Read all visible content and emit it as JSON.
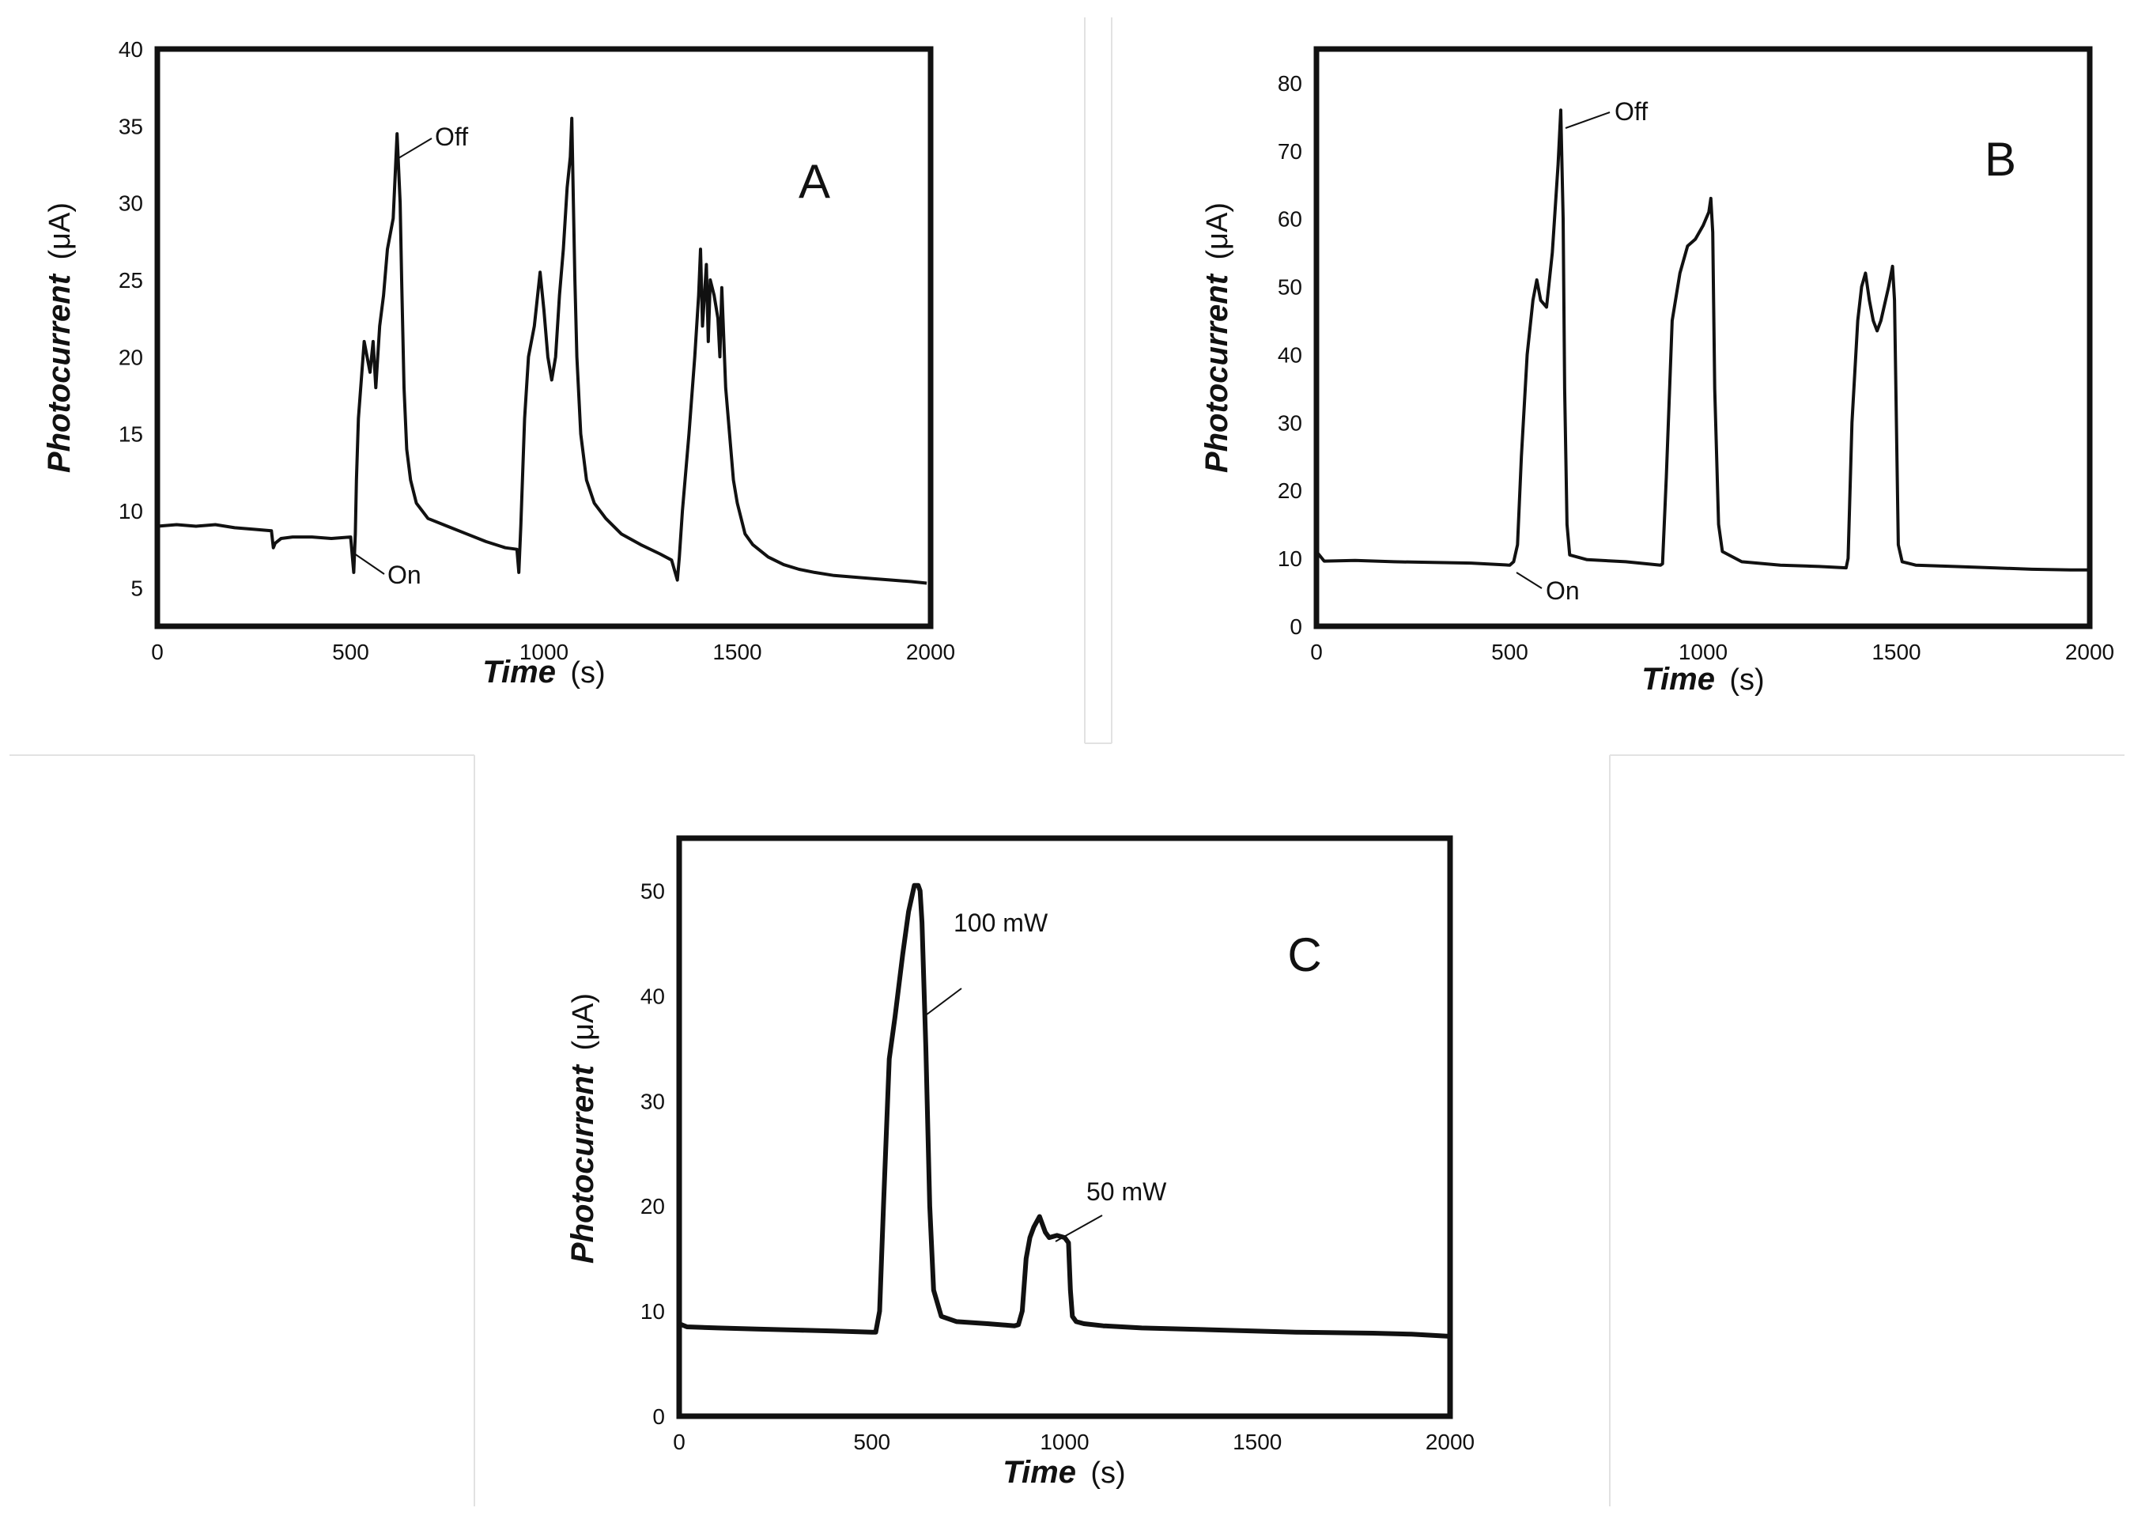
{
  "chart_data": [
    {
      "type": "line",
      "panel_label": "A",
      "xlabel": "Time",
      "xlabel_unit": "(s)",
      "ylabel": "Photocurrent",
      "ylabel_unit": "(μA)",
      "xlim": [
        0,
        2000
      ],
      "ylim": [
        2.5,
        40
      ],
      "xticks": [
        0,
        500,
        1000,
        1500,
        2000
      ],
      "yticks": [
        5,
        10,
        15,
        20,
        25,
        30,
        35,
        40
      ],
      "grid": false,
      "series": [
        {
          "name": "photocurrent",
          "x": [
            0,
            50,
            100,
            150,
            200,
            250,
            295,
            300,
            305,
            320,
            350,
            400,
            450,
            500,
            508,
            512,
            515,
            520,
            535,
            550,
            558,
            565,
            575,
            585,
            595,
            610,
            620,
            628,
            632,
            638,
            645,
            655,
            670,
            700,
            750,
            800,
            850,
            900,
            930,
            935,
            940,
            950,
            960,
            975,
            990,
            1000,
            1010,
            1020,
            1030,
            1040,
            1050,
            1060,
            1068,
            1072,
            1076,
            1080,
            1085,
            1095,
            1110,
            1130,
            1160,
            1200,
            1250,
            1300,
            1330,
            1345,
            1350,
            1358,
            1375,
            1390,
            1400,
            1405,
            1410,
            1420,
            1425,
            1430,
            1440,
            1450,
            1455,
            1460,
            1470,
            1480,
            1490,
            1500,
            1510,
            1520,
            1540,
            1580,
            1620,
            1660,
            1700,
            1750,
            1800,
            1850,
            1900,
            1950,
            1990
          ],
          "y": [
            9.0,
            9.1,
            9.0,
            9.1,
            8.9,
            8.8,
            8.7,
            7.6,
            7.9,
            8.2,
            8.3,
            8.3,
            8.2,
            8.3,
            6.0,
            8.5,
            12,
            16,
            21,
            19,
            21,
            18,
            22,
            24,
            27,
            29,
            34.5,
            30,
            25,
            18,
            14,
            12,
            10.5,
            9.5,
            9.0,
            8.5,
            8.0,
            7.6,
            7.5,
            6.0,
            9,
            16,
            20,
            22,
            25.5,
            23,
            20,
            18.5,
            20,
            24,
            27,
            31,
            33,
            35.5,
            30,
            25,
            20,
            15,
            12,
            10.5,
            9.5,
            8.5,
            7.8,
            7.2,
            6.8,
            5.5,
            7,
            10,
            15,
            20,
            24,
            27,
            22,
            26,
            21,
            25,
            24,
            22.5,
            20,
            24.5,
            18,
            15,
            12,
            10.5,
            9.5,
            8.5,
            7.8,
            7.0,
            6.5,
            6.2,
            6.0,
            5.8,
            5.7,
            5.6,
            5.5,
            5.4,
            5.3
          ]
        }
      ],
      "annotations": [
        {
          "text": "Off",
          "x": 635,
          "y": 35
        },
        {
          "text": "On",
          "x": 600,
          "y": 5.5
        }
      ]
    },
    {
      "type": "line",
      "panel_label": "B",
      "xlabel": "Time",
      "xlabel_unit": "(s)",
      "ylabel": "Photocurrent",
      "ylabel_unit": "(μA)",
      "xlim": [
        0,
        2000
      ],
      "ylim": [
        0,
        85
      ],
      "xticks": [
        0,
        500,
        1000,
        1500,
        2000
      ],
      "yticks": [
        0,
        10,
        20,
        30,
        40,
        50,
        60,
        70,
        80
      ],
      "grid": false,
      "series": [
        {
          "name": "photocurrent",
          "x": [
            0,
            20,
            100,
            200,
            300,
            400,
            500,
            510,
            520,
            530,
            545,
            560,
            570,
            580,
            595,
            610,
            625,
            632,
            638,
            642,
            648,
            655,
            700,
            800,
            890,
            895,
            905,
            920,
            940,
            960,
            980,
            1000,
            1015,
            1020,
            1025,
            1030,
            1040,
            1050,
            1100,
            1200,
            1300,
            1370,
            1375,
            1385,
            1400,
            1410,
            1420,
            1430,
            1440,
            1450,
            1460,
            1480,
            1490,
            1495,
            1500,
            1505,
            1515,
            1550,
            1650,
            1750,
            1850,
            1950,
            1995
          ],
          "y": [
            11,
            9.6,
            9.7,
            9.5,
            9.4,
            9.3,
            9.0,
            9.5,
            12,
            25,
            40,
            48,
            51,
            48,
            47,
            55,
            68,
            76,
            60,
            35,
            15,
            10.5,
            9.8,
            9.5,
            9.0,
            9.2,
            22,
            45,
            52,
            56,
            57,
            59,
            61,
            63,
            58,
            35,
            15,
            11,
            9.5,
            9.0,
            8.8,
            8.6,
            10,
            30,
            45,
            50,
            52,
            48,
            45,
            43.5,
            45,
            50,
            53,
            48,
            30,
            12,
            9.5,
            9.0,
            8.8,
            8.6,
            8.4,
            8.3,
            8.3
          ]
        }
      ],
      "annotations": [
        {
          "text": "Off",
          "x": 640,
          "y": 76
        },
        {
          "text": "On",
          "x": 540,
          "y": 8
        }
      ]
    },
    {
      "type": "line",
      "panel_label": "C",
      "xlabel": "Time",
      "xlabel_unit": "(s)",
      "ylabel": "Photocurrent",
      "ylabel_unit": "(μA)",
      "xlim": [
        0,
        2000
      ],
      "ylim": [
        0,
        55
      ],
      "xticks": [
        0,
        500,
        1000,
        1500,
        2000
      ],
      "yticks": [
        0,
        10,
        20,
        30,
        40,
        50
      ],
      "grid": false,
      "series": [
        {
          "name": "photocurrent",
          "x": [
            0,
            20,
            100,
            200,
            300,
            400,
            500,
            510,
            520,
            530,
            545,
            560,
            580,
            595,
            610,
            620,
            625,
            630,
            640,
            650,
            660,
            680,
            720,
            800,
            870,
            880,
            890,
            900,
            910,
            920,
            935,
            950,
            960,
            980,
            1000,
            1010,
            1015,
            1020,
            1030,
            1050,
            1100,
            1200,
            1400,
            1600,
            1800,
            1900,
            2000
          ],
          "y": [
            8.8,
            8.5,
            8.4,
            8.3,
            8.2,
            8.1,
            8.0,
            8.0,
            10,
            20,
            34,
            38,
            44,
            48,
            50.5,
            50.5,
            50,
            47,
            35,
            20,
            12,
            9.5,
            9.0,
            8.8,
            8.6,
            8.7,
            10,
            15,
            17,
            18,
            19,
            17.5,
            17,
            17.2,
            17,
            16.5,
            12,
            9.5,
            9,
            8.8,
            8.6,
            8.4,
            8.2,
            8.0,
            7.9,
            7.8,
            7.6
          ]
        }
      ],
      "annotations": [
        {
          "text": "100 mW",
          "x": 680,
          "y": 45
        },
        {
          "text": "50 mW",
          "x": 1000,
          "y": 19
        }
      ]
    }
  ]
}
